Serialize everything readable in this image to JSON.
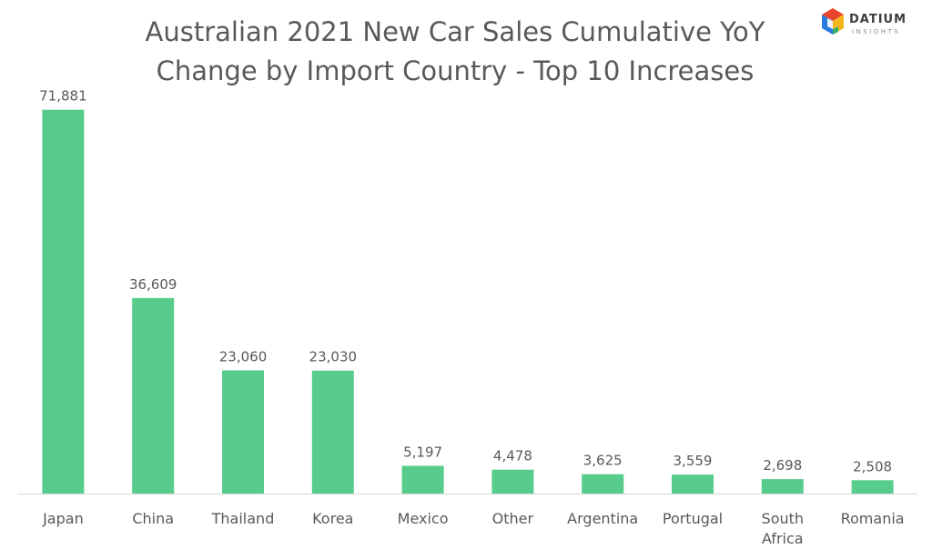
{
  "title_line1": "Australian 2021 New Car Sales Cumulative YoY",
  "title_line2": "Change by Import Country - Top 10 Increases",
  "logo": {
    "name": "DATIUM",
    "sub": "INSIGHTS"
  },
  "colors": {
    "bar": "#57cc8c",
    "axis": "#d9d9d9",
    "text": "#595959"
  },
  "chart_data": {
    "type": "bar",
    "title": "Australian 2021 New Car Sales Cumulative YoY Change by Import Country - Top 10 Increases",
    "categories": [
      "Japan",
      "China",
      "Thailand",
      "Korea",
      "Mexico",
      "Other",
      "Argentina",
      "Portugal",
      "South Africa",
      "Romania"
    ],
    "category_lines": [
      [
        "Japan"
      ],
      [
        "China"
      ],
      [
        "Thailand"
      ],
      [
        "Korea"
      ],
      [
        "Mexico"
      ],
      [
        "Other"
      ],
      [
        "Argentina"
      ],
      [
        "Portugal"
      ],
      [
        "South",
        "Africa"
      ],
      [
        "Romania"
      ]
    ],
    "values": [
      71881,
      36609,
      23060,
      23030,
      5197,
      4478,
      3625,
      3559,
      2698,
      2508
    ],
    "value_labels": [
      "71,881",
      "36,609",
      "23,060",
      "23,030",
      "5,197",
      "4,478",
      "3,625",
      "3,559",
      "2,698",
      "2,508"
    ],
    "ylim": [
      0,
      80000
    ],
    "grid": false,
    "legend": "none"
  }
}
